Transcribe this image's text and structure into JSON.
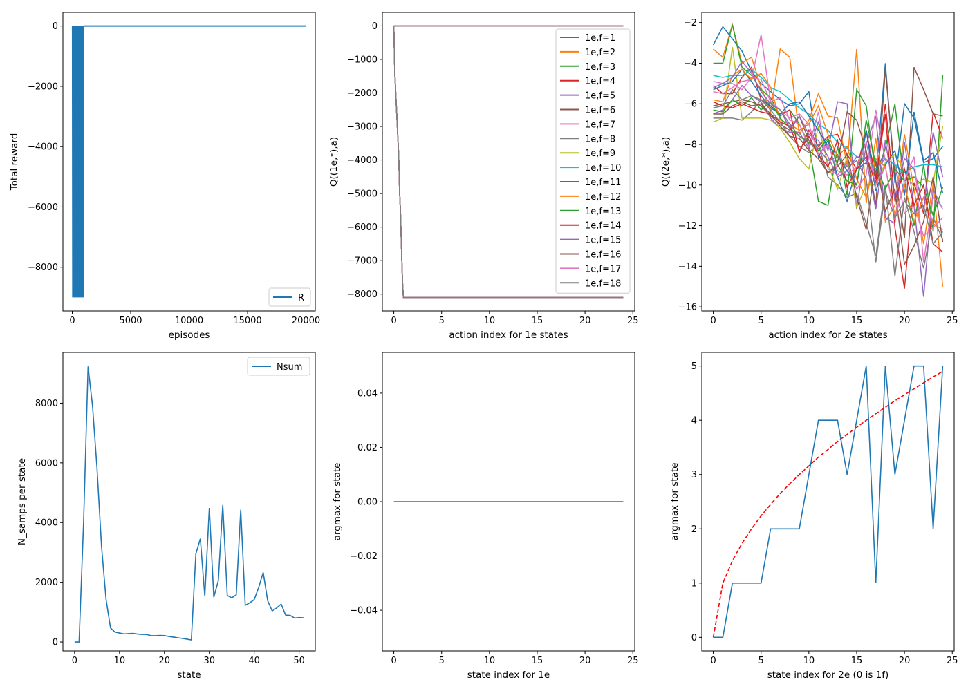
{
  "palette": [
    "#1f77b4",
    "#ff7f0e",
    "#2ca02c",
    "#d62728",
    "#9467bd",
    "#8c564b",
    "#e377c2",
    "#7f7f7f",
    "#bcbd22",
    "#17becf"
  ],
  "chart_data": [
    {
      "id": "p1",
      "type": "line",
      "xlabel": "episodes",
      "ylabel": "Total reward",
      "xlim": [
        -800,
        20800
      ],
      "ylim": [
        -9450,
        450
      ],
      "xticks": [
        0,
        5000,
        10000,
        15000,
        20000
      ],
      "yticks": [
        0,
        -2000,
        -4000,
        -6000,
        -8000
      ],
      "legend_position": "lower-right",
      "series": [
        {
          "name": "R",
          "color": "#1f77b4",
          "width": 2,
          "oscillating_band": {
            "x_start": 0,
            "x_end": 1000,
            "step": 25,
            "high": 0,
            "low": -9000
          },
          "x": [
            1000,
            20000
          ],
          "y": [
            0,
            0
          ]
        }
      ]
    },
    {
      "id": "p2",
      "type": "line",
      "xlabel": "action index for 1e states",
      "ylabel": "Q((1e,*),a)",
      "xlim": [
        -1.2,
        25.2
      ],
      "ylim": [
        -8500,
        400
      ],
      "xticks": [
        0,
        5,
        10,
        15,
        20,
        25
      ],
      "yticks": [
        0,
        -1000,
        -2000,
        -3000,
        -4000,
        -5000,
        -6000,
        -7000,
        -8000
      ],
      "legend_position": "upper-right",
      "series_labels": [
        "1e,f=1",
        "1e,f=2",
        "1e,f=3",
        "1e,f=4",
        "1e,f=5",
        "1e,f=6",
        "1e,f=7",
        "1e,f=8",
        "1e,f=9",
        "1e,f=10",
        "1e,f=11",
        "1e,f=12",
        "1e,f=13",
        "1e,f=14",
        "1e,f=15",
        "1e,f=16",
        "1e,f=17",
        "1e,f=18"
      ],
      "flat_series": {
        "x": [
          0,
          24
        ],
        "y": [
          0,
          0
        ]
      },
      "drop_series": {
        "x": [
          0,
          0.05,
          0.1,
          0.2,
          0.3,
          0.4,
          0.5,
          0.55,
          0.6,
          0.7,
          0.75,
          0.8,
          0.85,
          0.9,
          1.0,
          24
        ],
        "y": [
          0,
          -700,
          -1400,
          -2000,
          -2600,
          -3200,
          -3800,
          -4300,
          -4900,
          -5600,
          -6100,
          -6600,
          -7100,
          -7600,
          -8100,
          -8100
        ]
      }
    },
    {
      "id": "p3",
      "type": "line",
      "xlabel": "action index for 2e states",
      "ylabel": "Q((2e,*),a)",
      "xlim": [
        -1.2,
        25.2
      ],
      "ylim": [
        -16.2,
        -1.5
      ],
      "xticks": [
        0,
        5,
        10,
        15,
        20,
        25
      ],
      "yticks": [
        -2,
        -4,
        -6,
        -8,
        -10,
        -12,
        -14,
        -16
      ],
      "x": [
        0,
        1,
        2,
        3,
        4,
        5,
        6,
        7,
        8,
        9,
        10,
        11,
        12,
        13,
        14,
        15,
        16,
        17,
        18,
        19,
        20,
        21,
        22,
        23,
        24
      ],
      "series": [
        {
          "values": [
            -3.1,
            -2.2,
            -2.8,
            -3.4,
            -4.4,
            -5.0,
            -5.4,
            -5.8,
            -6.1,
            -6.0,
            -5.4,
            -8.6,
            -7.8,
            -9.6,
            -10.8,
            -9.2,
            -8.9,
            -9.6,
            -4.0,
            -9.9,
            -6.0,
            -6.7,
            -8.9,
            -8.7,
            -8.1
          ]
        },
        {
          "values": [
            -3.3,
            -3.7,
            -2.1,
            -4.0,
            -3.7,
            -5.2,
            -6.4,
            -3.3,
            -3.7,
            -7.5,
            -6.8,
            -5.5,
            -6.6,
            -6.7,
            -9.0,
            -3.3,
            -10.9,
            -7.7,
            -11.8,
            -11.0,
            -7.5,
            -10.2,
            -12.9,
            -9.9,
            -15.0
          ]
        },
        {
          "values": [
            -4.0,
            -4.0,
            -2.1,
            -4.2,
            -4.6,
            -5.3,
            -5.7,
            -6.6,
            -6.3,
            -7.0,
            -8.0,
            -10.8,
            -11.0,
            -8.1,
            -10.5,
            -5.3,
            -6.1,
            -9.5,
            -8.2,
            -6.0,
            -10.0,
            -12.0,
            -9.0,
            -12.3,
            -4.6
          ]
        },
        {
          "values": [
            -5.1,
            -5.5,
            -5.5,
            -4.7,
            -4.2,
            -5.8,
            -6.1,
            -6.5,
            -6.3,
            -8.4,
            -7.3,
            -8.1,
            -7.6,
            -7.5,
            -8.5,
            -9.2,
            -7.3,
            -9.7,
            -6.5,
            -12.1,
            -15.1,
            -9.9,
            -11.4,
            -6.4,
            -7.7
          ]
        },
        {
          "values": [
            -6.5,
            -6.3,
            -5.8,
            -5.1,
            -5.6,
            -5.9,
            -6.7,
            -7.2,
            -7.4,
            -7.4,
            -8.2,
            -6.9,
            -8.3,
            -5.9,
            -6.0,
            -11.2,
            -8.0,
            -6.6,
            -11.6,
            -11.9,
            -7.9,
            -11.0,
            -15.5,
            -10.2,
            -11.2
          ]
        },
        {
          "values": [
            -6.1,
            -6.0,
            -5.9,
            -5.8,
            -5.9,
            -6.1,
            -6.6,
            -7.0,
            -7.3,
            -6.6,
            -7.8,
            -8.5,
            -9.4,
            -8.9,
            -6.4,
            -6.8,
            -8.3,
            -11.0,
            -4.3,
            -9.5,
            -12.6,
            -4.2,
            -5.3,
            -6.5,
            -6.6
          ]
        },
        {
          "values": [
            -4.9,
            -5.0,
            -5.0,
            -5.3,
            -4.7,
            -4.8,
            -5.9,
            -5.7,
            -6.8,
            -7.0,
            -8.1,
            -6.4,
            -9.2,
            -9.5,
            -9.0,
            -10.2,
            -9.5,
            -6.3,
            -8.8,
            -8.9,
            -11.4,
            -11.0,
            -12.5,
            -12.1,
            -11.6
          ]
        },
        {
          "values": [
            -6.7,
            -6.7,
            -6.7,
            -6.8,
            -6.4,
            -5.8,
            -6.3,
            -6.9,
            -7.6,
            -8.1,
            -8.4,
            -8.0,
            -9.6,
            -10.0,
            -10.6,
            -10.4,
            -11.9,
            -13.5,
            -10.0,
            -14.5,
            -10.6,
            -12.3,
            -14.1,
            -11.6,
            -12.7
          ]
        },
        {
          "values": [
            -6.9,
            -6.7,
            -3.2,
            -6.7,
            -6.7,
            -6.7,
            -6.8,
            -7.2,
            -7.9,
            -8.7,
            -9.2,
            -7.1,
            -9.0,
            -10.2,
            -8.6,
            -11.1,
            -10.0,
            -10.0,
            -8.9,
            -8.5,
            -9.3,
            -10.1,
            -9.7,
            -9.9,
            -7.1
          ]
        },
        {
          "values": [
            -4.6,
            -4.7,
            -4.6,
            -4.6,
            -4.3,
            -4.7,
            -5.2,
            -5.4,
            -5.8,
            -6.2,
            -6.5,
            -7.0,
            -7.3,
            -7.9,
            -8.2,
            -8.6,
            -8.8,
            -9.2,
            -8.7,
            -9.0,
            -9.4,
            -9.1,
            -9.0,
            -9.0,
            -9.1
          ]
        },
        {
          "values": [
            -5.3,
            -5.1,
            -4.9,
            -4.3,
            -4.9,
            -5.6,
            -6.2,
            -6.5,
            -6.0,
            -5.9,
            -6.6,
            -7.3,
            -8.1,
            -8.5,
            -9.3,
            -10.0,
            -7.3,
            -10.3,
            -9.0,
            -8.3,
            -10.5,
            -6.4,
            -8.8,
            -8.4,
            -10.4
          ]
        },
        {
          "values": [
            -5.8,
            -5.9,
            -4.6,
            -4.3,
            -4.8,
            -4.5,
            -5.2,
            -6.8,
            -7.0,
            -7.3,
            -7.0,
            -6.1,
            -7.5,
            -8.6,
            -8.1,
            -9.7,
            -10.6,
            -8.7,
            -9.1,
            -11.5,
            -10.0,
            -11.8,
            -10.6,
            -11.9,
            -12.2
          ]
        },
        {
          "values": [
            -6.3,
            -6.4,
            -5.8,
            -6.1,
            -5.7,
            -6.3,
            -5.9,
            -6.7,
            -7.2,
            -7.6,
            -7.9,
            -8.3,
            -7.7,
            -9.0,
            -9.8,
            -10.0,
            -6.8,
            -9.0,
            -10.2,
            -9.2,
            -9.8,
            -9.6,
            -10.1,
            -11.5,
            -10.1
          ]
        },
        {
          "values": [
            -5.9,
            -6.1,
            -6.2,
            -6.0,
            -6.2,
            -6.4,
            -6.5,
            -6.9,
            -7.1,
            -8.3,
            -7.6,
            -8.5,
            -9.1,
            -7.8,
            -10.1,
            -9.2,
            -8.6,
            -9.9,
            -6.0,
            -10.8,
            -9.2,
            -11.0,
            -10.0,
            -12.9,
            -13.3
          ]
        },
        {
          "values": [
            -5.2,
            -5.0,
            -4.7,
            -3.9,
            -4.5,
            -5.4,
            -6.0,
            -6.3,
            -7.2,
            -6.6,
            -7.5,
            -7.8,
            -8.6,
            -9.6,
            -9.3,
            -8.6,
            -8.7,
            -11.2,
            -7.8,
            -10.7,
            -8.7,
            -9.2,
            -11.2,
            -7.4,
            -9.6
          ]
        },
        {
          "values": [
            -6.5,
            -6.5,
            -6.1,
            -5.9,
            -6.1,
            -6.0,
            -6.5,
            -7.1,
            -7.6,
            -7.7,
            -8.3,
            -8.7,
            -9.4,
            -9.1,
            -8.5,
            -10.6,
            -12.2,
            -8.8,
            -11.3,
            -10.2,
            -13.9,
            -13.0,
            -11.8,
            -9.6,
            -12.8
          ]
        },
        {
          "values": [
            -5.4,
            -5.5,
            -5.2,
            -4.9,
            -4.8,
            -2.6,
            -5.9,
            -6.3,
            -6.7,
            -6.5,
            -7.0,
            -8.5,
            -8.0,
            -9.3,
            -9.5,
            -9.1,
            -7.9,
            -10.0,
            -9.1,
            -11.7,
            -9.8,
            -8.6,
            -13.8,
            -10.6,
            -11.1
          ]
        },
        {
          "values": [
            -6.2,
            -6.1,
            -5.3,
            -5.8,
            -5.6,
            -5.8,
            -6.0,
            -6.3,
            -7.0,
            -7.6,
            -7.8,
            -8.2,
            -8.8,
            -8.6,
            -9.1,
            -8.8,
            -9.7,
            -13.8,
            -10.3,
            -11.6,
            -10.8,
            -11.4,
            -11.0,
            -12.9,
            -12.3
          ]
        }
      ]
    },
    {
      "id": "p4",
      "type": "line",
      "xlabel": "state",
      "ylabel": "N_samps per state",
      "xlim": [
        -2.6,
        53.6
      ],
      "ylim": [
        -300,
        9700
      ],
      "xticks": [
        0,
        10,
        20,
        30,
        40,
        50
      ],
      "yticks": [
        0,
        2000,
        4000,
        6000,
        8000
      ],
      "legend_position": "upper-right",
      "series": [
        {
          "name": "Nsum",
          "color": "#1f77b4",
          "x": [
            0,
            1,
            2,
            3,
            4,
            5,
            6,
            7,
            8,
            9,
            10,
            11,
            12,
            13,
            14,
            15,
            16,
            17,
            18,
            19,
            20,
            21,
            22,
            23,
            24,
            25,
            26,
            27,
            28,
            29,
            30,
            31,
            32,
            33,
            34,
            35,
            36,
            37,
            38,
            39,
            40,
            41,
            42,
            43,
            44,
            45,
            46,
            47,
            48,
            49,
            50,
            51
          ],
          "values": [
            0,
            0,
            4000,
            9230,
            7900,
            5800,
            3200,
            1430,
            470,
            330,
            300,
            270,
            280,
            290,
            265,
            255,
            250,
            215,
            210,
            220,
            215,
            185,
            165,
            140,
            120,
            95,
            70,
            2950,
            3460,
            1530,
            4490,
            1500,
            2050,
            4590,
            1560,
            1480,
            1580,
            4430,
            1230,
            1310,
            1420,
            1830,
            2330,
            1380,
            1040,
            1140,
            1270,
            900,
            890,
            800,
            820,
            810
          ]
        }
      ]
    },
    {
      "id": "p5",
      "type": "line",
      "xlabel": "state index for 1e",
      "ylabel": "argmax for state",
      "xlim": [
        -1.2,
        25.2
      ],
      "ylim": [
        -0.055,
        0.055
      ],
      "xticks": [
        0,
        5,
        10,
        15,
        20,
        25
      ],
      "yticks": [
        0.04,
        0.02,
        0.0,
        -0.02,
        -0.04
      ],
      "ytick_labels": [
        "0.04",
        "0.02",
        "0.00",
        "−0.02",
        "−0.04"
      ],
      "series": [
        {
          "color": "#1f77b4",
          "x": [
            0,
            24
          ],
          "values": [
            0,
            0
          ]
        }
      ]
    },
    {
      "id": "p6",
      "type": "line",
      "xlabel": "state index for 2e (0 is 1f)",
      "ylabel": "argmax for state",
      "xlim": [
        -1.2,
        25.2
      ],
      "ylim": [
        -0.25,
        5.25
      ],
      "xticks": [
        0,
        5,
        10,
        15,
        20,
        25
      ],
      "yticks": [
        0,
        1,
        2,
        3,
        4,
        5
      ],
      "series": [
        {
          "color": "#1f77b4",
          "x": [
            0,
            1,
            2,
            3,
            4,
            5,
            6,
            7,
            8,
            9,
            10,
            11,
            12,
            13,
            14,
            15,
            16,
            17,
            18,
            19,
            20,
            21,
            22,
            23,
            24
          ],
          "values": [
            0,
            0,
            1,
            1,
            1,
            1,
            2,
            2,
            2,
            2,
            3,
            4,
            4,
            4,
            3,
            4,
            5,
            1,
            5,
            3,
            4,
            5,
            5,
            2,
            5
          ]
        },
        {
          "color": "#ff0000",
          "dashed": true,
          "x": [
            0,
            1,
            2,
            3,
            4,
            5,
            6,
            7,
            8,
            9,
            10,
            11,
            12,
            13,
            14,
            15,
            16,
            17,
            18,
            19,
            20,
            21,
            22,
            23,
            24
          ],
          "values": [
            0,
            1.0,
            1.41,
            1.73,
            2.0,
            2.24,
            2.45,
            2.65,
            2.83,
            3.0,
            3.16,
            3.32,
            3.46,
            3.61,
            3.74,
            3.87,
            4.0,
            4.12,
            4.24,
            4.36,
            4.47,
            4.58,
            4.69,
            4.8,
            4.9
          ]
        }
      ]
    }
  ]
}
